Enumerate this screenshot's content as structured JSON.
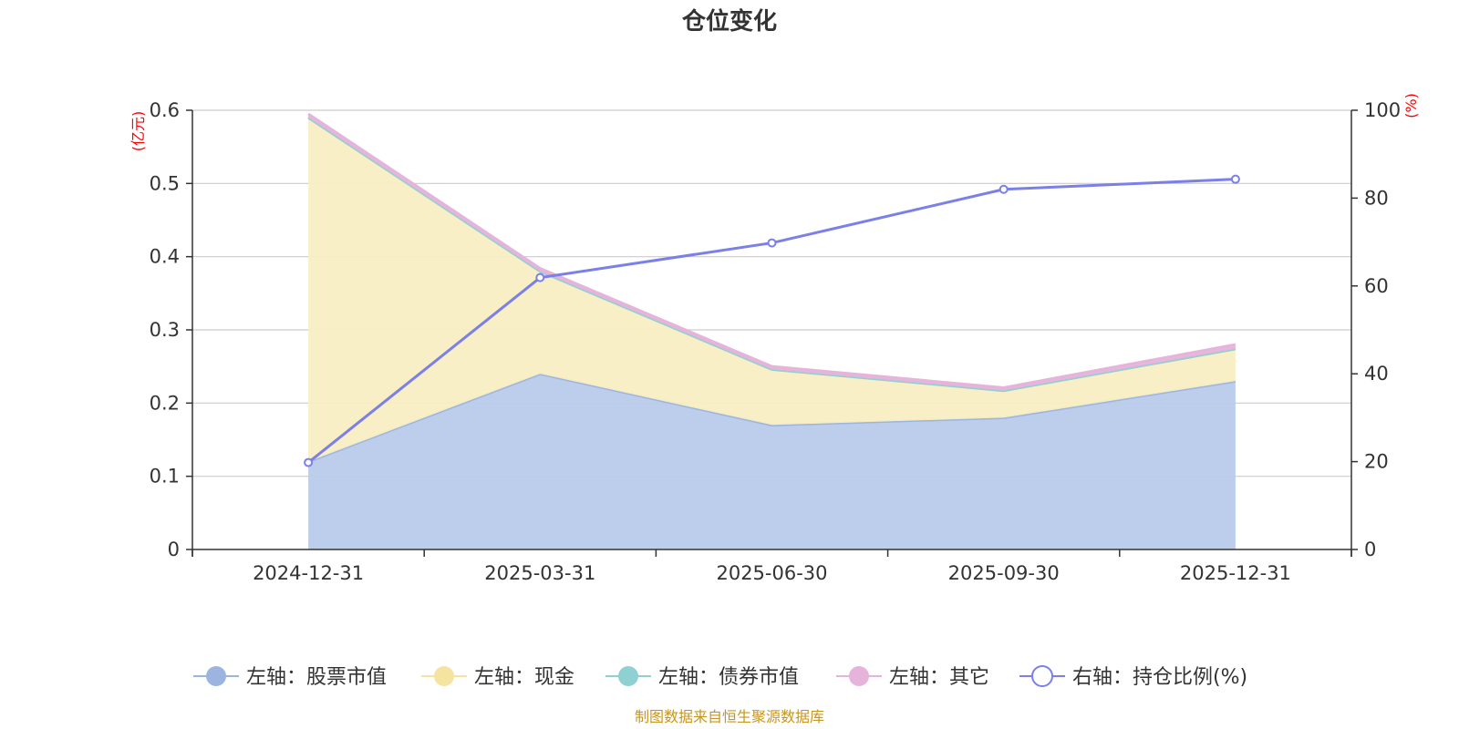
{
  "chart_data": {
    "type": "area",
    "title": "仓位变化",
    "categories": [
      "2024-12-31",
      "2025-03-31",
      "2025-06-30",
      "2025-09-30",
      "2025-12-31"
    ],
    "left_axis": {
      "unit": "(亿元)",
      "min": 0,
      "max": 0.6,
      "ticks": [
        0,
        0.1,
        0.2,
        0.3,
        0.4,
        0.5,
        0.6
      ]
    },
    "right_axis": {
      "unit": "(%)",
      "min": 0,
      "max": 100,
      "ticks": [
        0,
        20,
        40,
        60,
        80,
        100
      ]
    },
    "series": [
      {
        "name": "左轴：股票市值",
        "axis": "left",
        "kind": "area",
        "values": [
          0.12,
          0.24,
          0.17,
          0.18,
          0.23
        ]
      },
      {
        "name": "左轴：现金",
        "axis": "left",
        "kind": "area",
        "values": [
          0.47,
          0.14,
          0.076,
          0.037,
          0.044
        ]
      },
      {
        "name": "左轴：债券市值",
        "axis": "left",
        "kind": "area",
        "values": [
          0,
          0,
          0,
          0,
          0
        ]
      },
      {
        "name": "左轴：其它",
        "axis": "left",
        "kind": "area",
        "values": [
          0.005,
          0.004,
          0.004,
          0.004,
          0.006
        ]
      },
      {
        "name": "右轴：持仓比例(%)",
        "axis": "right",
        "kind": "line",
        "values": [
          19.8,
          61.9,
          69.8,
          82.0,
          84.3
        ]
      }
    ],
    "colors": {
      "stock": "#9bb5e0",
      "stock_fill": "#b8cbea",
      "cash": "#f5e3a0",
      "cash_fill": "#f9eec3",
      "bond": "#8fd0d3",
      "other": "#e6b4da",
      "ratio": "#7b7fe8",
      "unit_label": "#ff0000",
      "source": "#c8961e"
    },
    "legend_position": "bottom",
    "source_note": "制图数据来自恒生聚源数据库"
  }
}
